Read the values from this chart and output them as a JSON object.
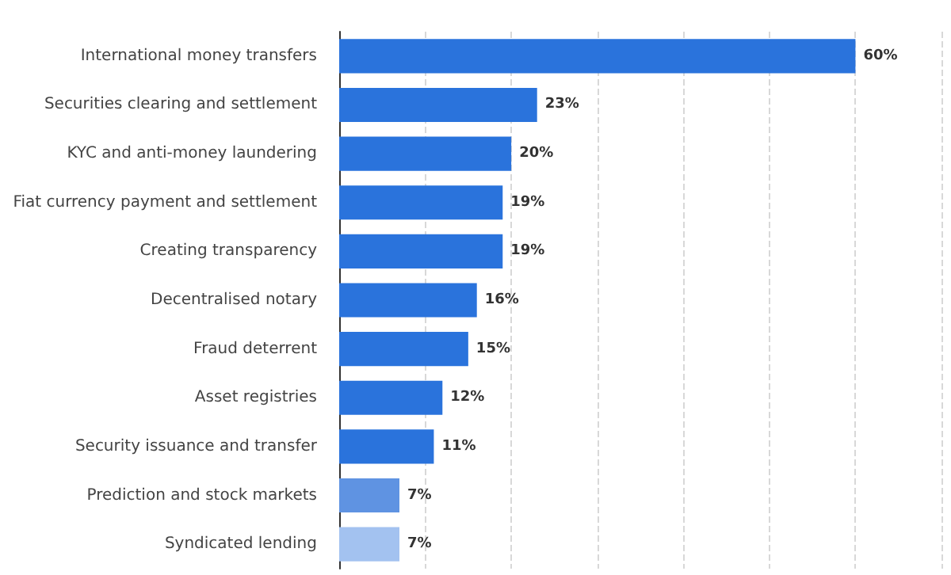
{
  "chart_data": {
    "type": "bar",
    "orientation": "horizontal",
    "categories": [
      "International money transfers",
      "Securities clearing and settlement",
      "KYC and anti-money laundering",
      "Fiat currency payment and settlement",
      "Creating transparency",
      "Decentralised notary",
      "Fraud deterrent",
      "Asset registries",
      "Security issuance and transfer",
      "Prediction and stock markets",
      "Syndicated lending"
    ],
    "values": [
      60,
      23,
      20,
      19,
      19,
      16,
      15,
      12,
      11,
      7,
      7
    ],
    "value_labels": [
      "60%",
      "23%",
      "20%",
      "19%",
      "19%",
      "16%",
      "15%",
      "12%",
      "11%",
      "7%",
      "7%"
    ],
    "colors": [
      "#2a73dc",
      "#2a73dc",
      "#2a73dc",
      "#2a73dc",
      "#2a73dc",
      "#2a73dc",
      "#2a73dc",
      "#2a73dc",
      "#2a73dc",
      "#5f93e2",
      "#a3c2f0"
    ],
    "xlim": [
      0,
      70
    ],
    "xticks": [
      {
        "value": 0,
        "label": null
      },
      {
        "value": 10,
        "label": null
      },
      {
        "value": 20,
        "label": null
      },
      {
        "value": 30,
        "label": null
      },
      {
        "value": 40,
        "label": null
      },
      {
        "value": 50,
        "label": null
      },
      {
        "value": 60,
        "label": null
      },
      {
        "value": 70,
        "label": null
      }
    ],
    "grid": "x",
    "tick_labels": "y"
  }
}
